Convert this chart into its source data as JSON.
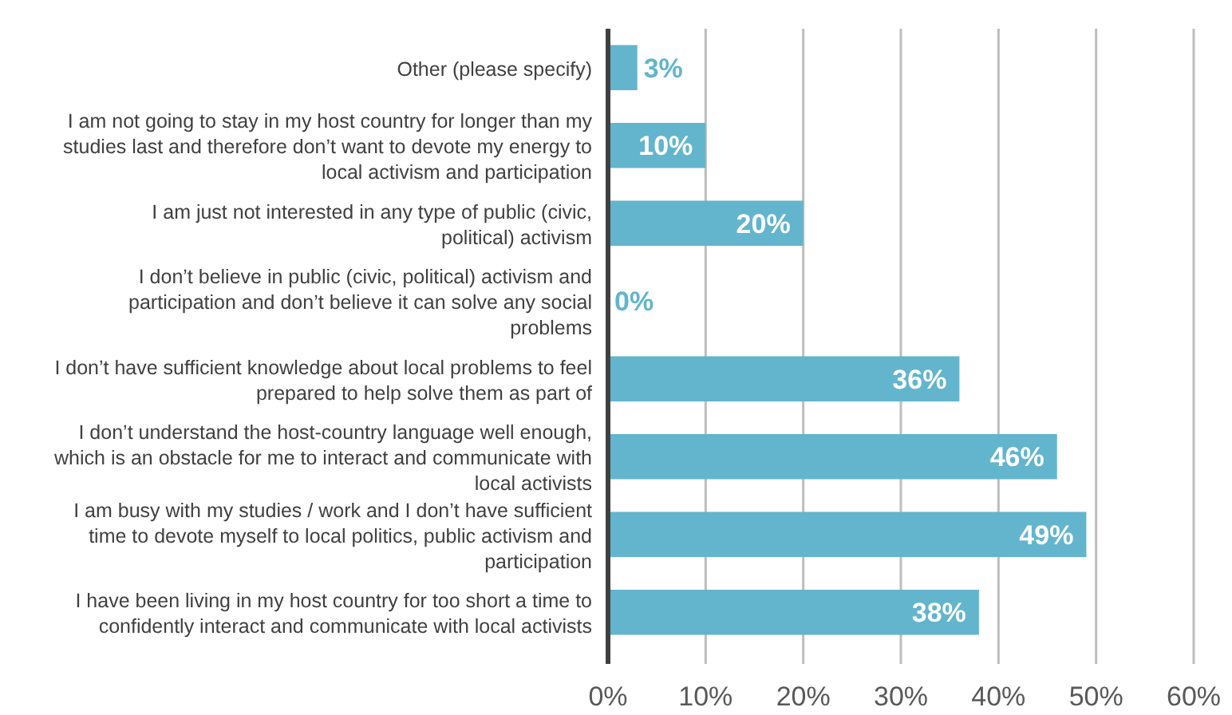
{
  "chart_data": {
    "type": "bar",
    "orientation": "horizontal",
    "categories": [
      "Other (please specify)",
      "I am not going to stay in my host country for longer than my studies last and therefore don’t want to devote my energy to local activism and participation",
      "I am just not interested in any type of public (civic, political) activism",
      "I don’t believe in public (civic, political) activism and participation and don’t believe it can solve any social problems",
      "I don’t have sufficient knowledge about local problems to feel prepared to help solve them as part of",
      "I don’t understand the host-country language well enough, which is an obstacle for me to interact and communicate with local activists",
      "I am busy with my studies / work and I don’t have sufficient time to devote myself to local politics, public activism and participation",
      "I have been living in my host country for too short a time to confidently interact and communicate with local activists"
    ],
    "values": [
      3,
      10,
      20,
      0,
      36,
      46,
      49,
      38
    ],
    "value_labels": [
      "3%",
      "10%",
      "20%",
      "0%",
      "36%",
      "46%",
      "49%",
      "38%"
    ],
    "color": "#62b5cc",
    "xlim": [
      0,
      60
    ],
    "xticks": [
      {
        "value": 0,
        "label": "0%"
      },
      {
        "value": 10,
        "label": "10%"
      },
      {
        "value": 20,
        "label": "20%"
      },
      {
        "value": 30,
        "label": "30%"
      },
      {
        "value": 40,
        "label": "40%"
      },
      {
        "value": 50,
        "label": "50%"
      },
      {
        "value": 60,
        "label": "60%"
      }
    ],
    "grid": "x"
  }
}
